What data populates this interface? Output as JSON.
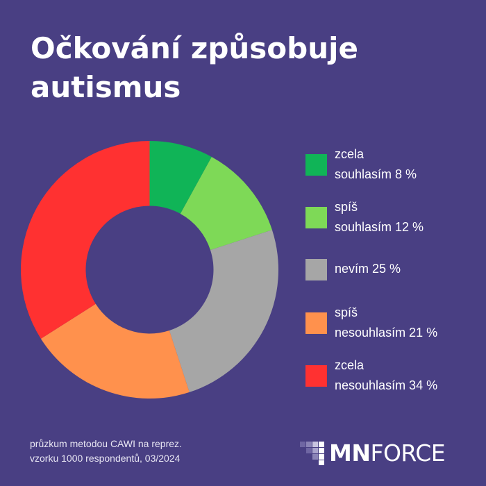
{
  "title_line1": "Očkování způsobuje",
  "title_line2": "autismus",
  "chart_data": {
    "type": "pie",
    "donut": true,
    "title": "Očkování způsobuje autismus",
    "categories": [
      "zcela souhlasím",
      "spíš souhlasím",
      "nevím",
      "spíš nesouhlasím",
      "zcela nesouhlasím"
    ],
    "values": [
      8,
      12,
      25,
      21,
      34
    ],
    "unit": "%",
    "colors": [
      "#10b457",
      "#7ed957",
      "#a6a6a6",
      "#ff914d",
      "#ff3131"
    ],
    "legend_placement": "right"
  },
  "legend": [
    {
      "line1": "zcela",
      "line2": "souhlasím 8 %",
      "color": "#10b457"
    },
    {
      "line1": "spíš",
      "line2": "souhlasím 12 %",
      "color": "#7ed957"
    },
    {
      "line1": "nevím 25 %",
      "line2": "",
      "color": "#a6a6a6"
    },
    {
      "line1": "spíš",
      "line2": "nesouhlasím 21 %",
      "color": "#ff914d"
    },
    {
      "line1": "zcela",
      "line2": "nesouhlasím 34 %",
      "color": "#ff3131"
    }
  ],
  "footnote_line1": "průzkum metodou CAWI na reprez.",
  "footnote_line2": "vzorku 1000 respondentů, 03/2024",
  "logo": {
    "part1": "MN",
    "part2": "FORCE"
  }
}
